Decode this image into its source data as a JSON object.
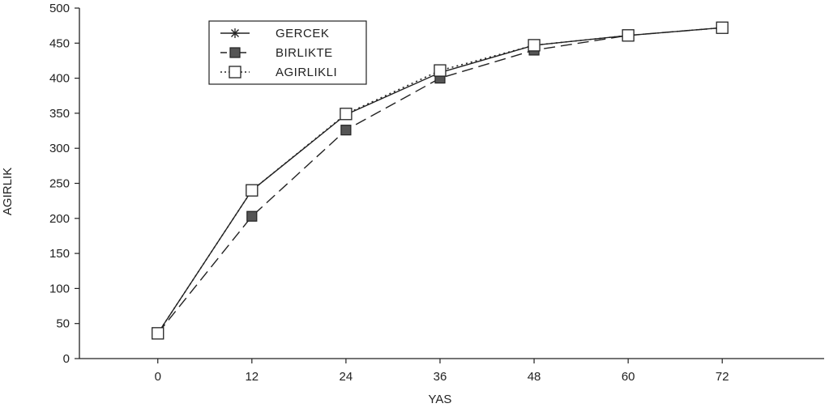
{
  "chart_data": {
    "type": "line",
    "title": "",
    "xlabel": "YAS",
    "ylabel": "AGIRLIK",
    "x": [
      0,
      12,
      24,
      36,
      48,
      60,
      72
    ],
    "xticks": [
      "0",
      "12",
      "24",
      "36",
      "48",
      "60",
      "72"
    ],
    "xlim": [
      -10,
      85
    ],
    "yticks": [
      "0",
      "50",
      "100",
      "150",
      "200",
      "250",
      "300",
      "350",
      "400",
      "450",
      "500"
    ],
    "ylim": [
      0,
      500
    ],
    "grid": false,
    "legend": "top-left",
    "series": [
      {
        "name": "GERCEK",
        "values": [
          36,
          240,
          348,
          408,
          447,
          461,
          472
        ],
        "line": "solid",
        "marker": "asterisk"
      },
      {
        "name": "BIRLIKTE",
        "values": [
          36,
          203,
          326,
          400,
          440,
          461,
          472
        ],
        "line": "dashed",
        "marker": "filled-square"
      },
      {
        "name": "AGIRLIKLI",
        "values": [
          36,
          240,
          349,
          411,
          447,
          461,
          472
        ],
        "line": "dotted",
        "marker": "open-square"
      }
    ]
  }
}
